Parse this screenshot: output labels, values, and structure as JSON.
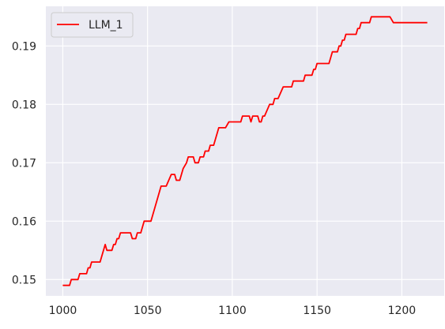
{
  "chart_data": {
    "type": "line",
    "title": "",
    "xlabel": "",
    "ylabel": "",
    "xlim": [
      990,
      1225
    ],
    "ylim": [
      0.1472,
      0.1968
    ],
    "x_ticks": [
      1000,
      1050,
      1100,
      1150,
      1200
    ],
    "y_ticks": [
      0.15,
      0.16,
      0.17,
      0.18,
      0.19
    ],
    "x_tick_labels": [
      "1000",
      "1050",
      "1100",
      "1150",
      "1200"
    ],
    "y_tick_labels": [
      "0.15",
      "0.16",
      "0.17",
      "0.18",
      "0.19"
    ],
    "grid": true,
    "legend": {
      "placement": "top-left",
      "entries": [
        "LLM_1"
      ]
    },
    "colors": {
      "background": "#eaeaf2",
      "grid": "#ffffff",
      "series": "#ff0000"
    },
    "series": [
      {
        "name": "LLM_1",
        "color": "#ff0000",
        "points": [
          [
            1000,
            0.149
          ],
          [
            1004,
            0.149
          ],
          [
            1005,
            0.15
          ],
          [
            1009,
            0.15
          ],
          [
            1010,
            0.151
          ],
          [
            1014,
            0.151
          ],
          [
            1015,
            0.152
          ],
          [
            1016,
            0.152
          ],
          [
            1017,
            0.153
          ],
          [
            1022,
            0.153
          ],
          [
            1025,
            0.156
          ],
          [
            1026,
            0.155
          ],
          [
            1029,
            0.155
          ],
          [
            1030,
            0.156
          ],
          [
            1031,
            0.156
          ],
          [
            1032,
            0.157
          ],
          [
            1033,
            0.157
          ],
          [
            1034,
            0.158
          ],
          [
            1040,
            0.158
          ],
          [
            1041,
            0.157
          ],
          [
            1043,
            0.157
          ],
          [
            1044,
            0.158
          ],
          [
            1046,
            0.158
          ],
          [
            1048,
            0.16
          ],
          [
            1052,
            0.16
          ],
          [
            1058,
            0.166
          ],
          [
            1061,
            0.166
          ],
          [
            1064,
            0.168
          ],
          [
            1066,
            0.168
          ],
          [
            1067,
            0.167
          ],
          [
            1069,
            0.167
          ],
          [
            1071,
            0.169
          ],
          [
            1073,
            0.17
          ],
          [
            1074,
            0.171
          ],
          [
            1077,
            0.171
          ],
          [
            1078,
            0.17
          ],
          [
            1080,
            0.17
          ],
          [
            1081,
            0.171
          ],
          [
            1083,
            0.171
          ],
          [
            1084,
            0.172
          ],
          [
            1086,
            0.172
          ],
          [
            1087,
            0.173
          ],
          [
            1089,
            0.173
          ],
          [
            1092,
            0.176
          ],
          [
            1096,
            0.176
          ],
          [
            1098,
            0.177
          ],
          [
            1105,
            0.177
          ],
          [
            1106,
            0.178
          ],
          [
            1110,
            0.178
          ],
          [
            1111,
            0.177
          ],
          [
            1112,
            0.178
          ],
          [
            1115,
            0.178
          ],
          [
            1116,
            0.177
          ],
          [
            1117,
            0.177
          ],
          [
            1118,
            0.178
          ],
          [
            1119,
            0.178
          ],
          [
            1122,
            0.18
          ],
          [
            1124,
            0.18
          ],
          [
            1125,
            0.181
          ],
          [
            1127,
            0.181
          ],
          [
            1130,
            0.183
          ],
          [
            1135,
            0.183
          ],
          [
            1136,
            0.184
          ],
          [
            1142,
            0.184
          ],
          [
            1143,
            0.185
          ],
          [
            1147,
            0.185
          ],
          [
            1148,
            0.186
          ],
          [
            1149,
            0.186
          ],
          [
            1150,
            0.187
          ],
          [
            1157,
            0.187
          ],
          [
            1159,
            0.189
          ],
          [
            1162,
            0.189
          ],
          [
            1163,
            0.19
          ],
          [
            1164,
            0.19
          ],
          [
            1165,
            0.191
          ],
          [
            1166,
            0.191
          ],
          [
            1167,
            0.192
          ],
          [
            1173,
            0.192
          ],
          [
            1174,
            0.193
          ],
          [
            1175,
            0.193
          ],
          [
            1176,
            0.194
          ],
          [
            1181,
            0.194
          ],
          [
            1182,
            0.195
          ],
          [
            1193,
            0.195
          ],
          [
            1195,
            0.194
          ],
          [
            1215,
            0.194
          ]
        ]
      }
    ]
  }
}
